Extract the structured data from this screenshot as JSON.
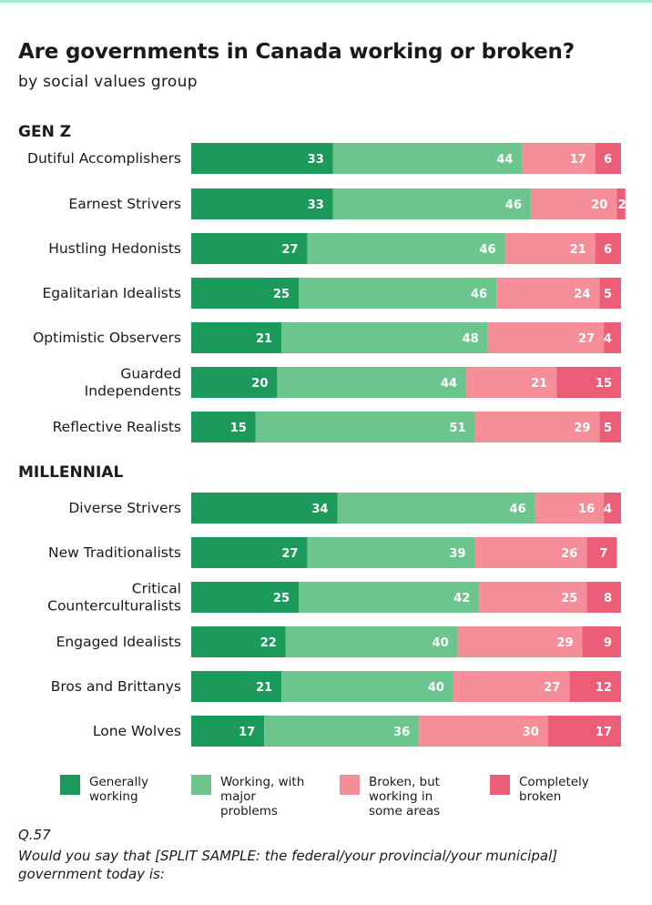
{
  "title": "Are governments in Canada working or broken?",
  "subtitle": "by social values group",
  "colors": {
    "top_rule": "#a8ead9",
    "generally_working": "#1c9a5c",
    "working_major_problems": "#6dc58e",
    "broken_some_areas": "#f58e98",
    "completely_broken": "#ec5d78",
    "bar_label": "#ffffff"
  },
  "chart_data": {
    "type": "bar",
    "orientation": "horizontal",
    "stacked": true,
    "xlim": [
      0,
      100
    ],
    "legend_position": "bottom",
    "grid": false,
    "series": [
      {
        "name": "Generally working",
        "color_key": "generally_working"
      },
      {
        "name": "Working, with major problems",
        "color_key": "working_major_problems"
      },
      {
        "name": "Broken, but working in some areas",
        "color_key": "broken_some_areas"
      },
      {
        "name": "Completely broken",
        "color_key": "completely_broken"
      }
    ],
    "groups": [
      {
        "name": "GEN Z",
        "rows": [
          {
            "label": [
              "Dutiful Accomplishers"
            ],
            "values": [
              33,
              44,
              17,
              6
            ]
          },
          {
            "label": [
              "Earnest Strivers"
            ],
            "values": [
              33,
              46,
              20,
              2
            ]
          },
          {
            "label": [
              "Hustling Hedonists"
            ],
            "values": [
              27,
              46,
              21,
              6
            ]
          },
          {
            "label": [
              "Egalitarian Idealists"
            ],
            "values": [
              25,
              46,
              24,
              5
            ]
          },
          {
            "label": [
              "Optimistic Observers"
            ],
            "values": [
              21,
              48,
              27,
              4
            ]
          },
          {
            "label": [
              "Guarded",
              "Independents"
            ],
            "values": [
              20,
              44,
              21,
              15
            ]
          },
          {
            "label": [
              "Reflective Realists"
            ],
            "values": [
              15,
              51,
              29,
              5
            ]
          }
        ]
      },
      {
        "name": "MILLENNIAL",
        "rows": [
          {
            "label": [
              "Diverse Strivers"
            ],
            "values": [
              34,
              46,
              16,
              4
            ]
          },
          {
            "label": [
              "New Traditionalists"
            ],
            "values": [
              27,
              39,
              26,
              7
            ]
          },
          {
            "label": [
              "Critical",
              "Counterculturalists"
            ],
            "values": [
              25,
              42,
              25,
              8
            ]
          },
          {
            "label": [
              "Engaged Idealists"
            ],
            "values": [
              22,
              40,
              29,
              9
            ]
          },
          {
            "label": [
              "Bros and Brittanys"
            ],
            "values": [
              21,
              40,
              27,
              12
            ]
          },
          {
            "label": [
              "Lone Wolves"
            ],
            "values": [
              17,
              36,
              30,
              17
            ]
          }
        ]
      }
    ]
  },
  "legend": [
    {
      "label": "Generally working"
    },
    {
      "label": "Working, with major problems"
    },
    {
      "label": "Broken, but working in some areas"
    },
    {
      "label": "Completely broken"
    }
  ],
  "question": {
    "id": "Q.57",
    "text": "Would you say that [SPLIT SAMPLE: the federal/your provincial/your municipal] government today is:"
  }
}
